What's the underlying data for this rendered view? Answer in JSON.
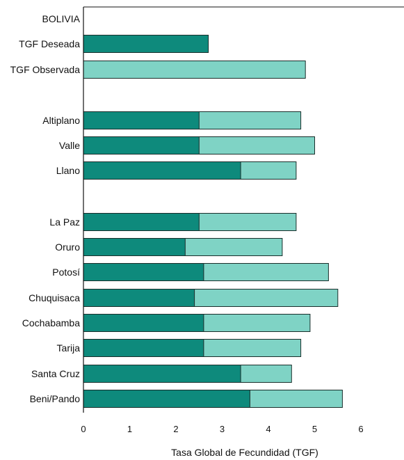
{
  "chart_data": {
    "type": "bar",
    "orientation": "horizontal",
    "stacked": true,
    "xlabel": "Tasa Global de Fecundidad (TGF)",
    "xlim": [
      0,
      7
    ],
    "xticks": [
      "0",
      "1",
      "2",
      "3",
      "4",
      "5",
      "6"
    ],
    "grid": false,
    "colors": {
      "desired": "#0e8a7c",
      "observed": "#7fd3c5",
      "edge": "#1a2e2b"
    },
    "categories": [
      {
        "label": "BOLIVIA",
        "desired": null,
        "observed": null
      },
      {
        "label": "TGF Deseada",
        "desired": 2.7,
        "observed": null
      },
      {
        "label": "TGF Observada",
        "desired": null,
        "observed": 4.8
      },
      {
        "label": "Altiplano",
        "desired": 2.5,
        "observed": 4.7
      },
      {
        "label": "Valle",
        "desired": 2.5,
        "observed": 5.0
      },
      {
        "label": "Llano",
        "desired": 3.4,
        "observed": 4.6
      },
      {
        "label": "La Paz",
        "desired": 2.5,
        "observed": 4.6
      },
      {
        "label": "Oruro",
        "desired": 2.2,
        "observed": 4.3
      },
      {
        "label": "Potosí",
        "desired": 2.6,
        "observed": 5.3
      },
      {
        "label": "Chuquisaca",
        "desired": 2.4,
        "observed": 5.5
      },
      {
        "label": "Cochabamba",
        "desired": 2.6,
        "observed": 4.9
      },
      {
        "label": "Tarija",
        "desired": 2.6,
        "observed": 4.7
      },
      {
        "label": "Santa Cruz",
        "desired": 3.4,
        "observed": 4.5
      },
      {
        "label": "Beni/Pando",
        "desired": 3.6,
        "observed": 5.6
      }
    ]
  }
}
